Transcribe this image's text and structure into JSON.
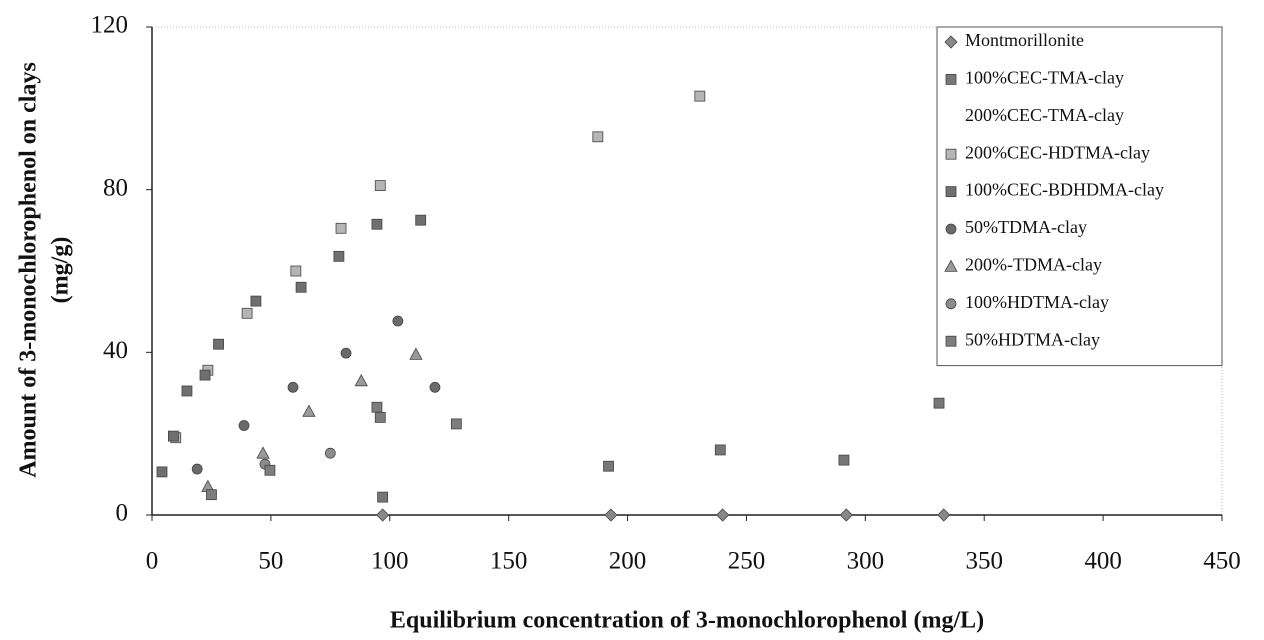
{
  "chart_data": {
    "type": "scatter",
    "x_label": "Equilibrium concentration of 3-monochlorophenol (mg/L)",
    "y_label": [
      "Amount of 3-monochlorophenol on clays",
      "(mg/g)"
    ],
    "xlim": [
      0,
      450
    ],
    "xticks": [
      0,
      50,
      100,
      150,
      200,
      250,
      300,
      350,
      400,
      450
    ],
    "ylim": [
      0,
      120
    ],
    "yticks": [
      0,
      40,
      80,
      120
    ],
    "legend": "upper right",
    "series": [
      {
        "name": "Montmorillonite",
        "color": "#888888",
        "marker": "diamond",
        "x": [
          97,
          193,
          240,
          292,
          333
        ],
        "values": [
          0,
          0,
          0,
          0,
          0
        ]
      },
      {
        "name": "100%CEC-TMA-clay",
        "color": "#777777",
        "marker": "square",
        "x": [
          97,
          192,
          239,
          291,
          331
        ],
        "values": [
          4.4,
          12,
          16,
          13.5,
          27.5
        ]
      },
      {
        "name": "200%CEC-TMA-clay",
        "color": "#dddddd",
        "marker": "none",
        "x": [],
        "values": []
      },
      {
        "name": "200%CEC-HDTMA-clay",
        "color": "#b5b5b5",
        "marker": "square",
        "x": [
          10,
          23.5,
          40,
          60.5,
          79.5,
          96,
          187.5,
          230.4
        ],
        "values": [
          19,
          35.6,
          49.6,
          60,
          70.5,
          81,
          93,
          103
        ]
      },
      {
        "name": "100%CEC-BDHDMA-clay",
        "color": "#6f6f6f",
        "marker": "square",
        "x": [
          4.2,
          9,
          14.7,
          22.3,
          28,
          43.7,
          62.7,
          78.6,
          94.6,
          113
        ],
        "values": [
          10.6,
          19.4,
          30.5,
          34.4,
          42,
          52.6,
          56,
          63.6,
          71.5,
          72.5
        ]
      },
      {
        "name": "50%TDMA-clay",
        "color": "#6a6a6a",
        "marker": "circle",
        "x": [
          19,
          38.7,
          59.3,
          81.6,
          103.4,
          119
        ],
        "values": [
          11.3,
          22,
          31.4,
          39.8,
          47.7,
          31.4
        ]
      },
      {
        "name": "200%-TDMA-clay",
        "color": "#9a9a9a",
        "marker": "triangle",
        "x": [
          23.5,
          46.7,
          66,
          88,
          111
        ],
        "values": [
          7,
          15.2,
          25.5,
          33,
          39.5
        ]
      },
      {
        "name": "100%HDTMA-clay",
        "color": "#8c8c8c",
        "marker": "circle",
        "x": [
          47.5,
          75
        ],
        "values": [
          12.5,
          15.2
        ]
      },
      {
        "name": "50%HDTMA-clay",
        "color": "#7d7d7d",
        "marker": "square",
        "x": [
          25,
          49.6,
          94.6,
          96,
          128
        ],
        "values": [
          5,
          11,
          26.5,
          24,
          22.4
        ]
      }
    ]
  }
}
